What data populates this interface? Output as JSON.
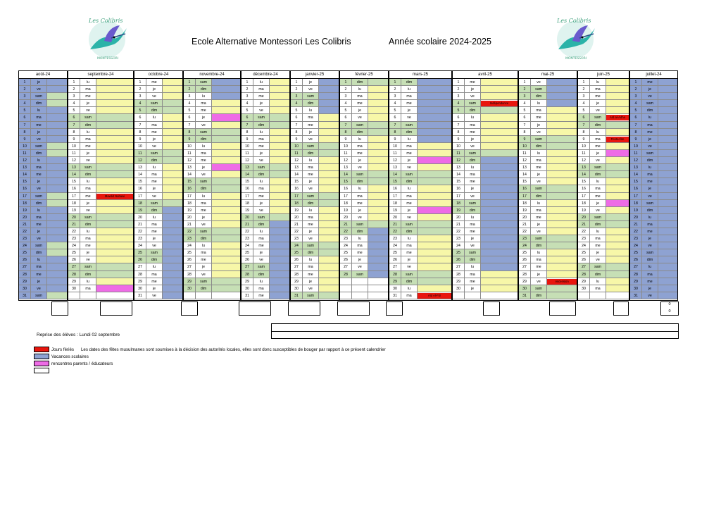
{
  "header": {
    "title_left": "Ecole Alternative Montessori Les Colibris",
    "title_right": "Année scolaire 2024-2025",
    "logo_text_top": "Les Colibris",
    "logo_text_bottom": "MONTESSORI",
    "logo_icon": "hummingbird-icon"
  },
  "colors": {
    "school": "#f7f7a8",
    "weekend": "#c6dfb5",
    "vacances": "#8ea2d2",
    "ferie": "#e8160e",
    "rencontre": "#ee6ce6",
    "summer": "#ffffff"
  },
  "months": [
    {
      "label": "août-24",
      "first_dow": 3,
      "days": 31,
      "summer": true
    },
    {
      "label": "septembre-24",
      "first_dow": 0,
      "days": 30,
      "vac": [],
      "ferie": [],
      "rencontre": [],
      "special": {
        "17": "Mawlid Nabawi"
      }
    },
    {
      "label": "octobre-24",
      "first_dow": 2,
      "days": 31
    },
    {
      "label": "novembre-24",
      "first_dow": 5,
      "days": 30
    },
    {
      "label": "décembre-24",
      "first_dow": 0,
      "days": 31
    },
    {
      "label": "janvier-25",
      "first_dow": 3,
      "days": 31
    },
    {
      "label": "février-25",
      "first_dow": 6,
      "days": 28
    },
    {
      "label": "mars-25",
      "first_dow": 6,
      "days": 31
    },
    {
      "label": "avril-25",
      "first_dow": 2,
      "days": 30
    },
    {
      "label": "mai-25",
      "first_dow": 4,
      "days": 31
    },
    {
      "label": "juin-25",
      "first_dow": 0,
      "days": 30
    },
    {
      "label": "juillet-24",
      "first_dow": 2,
      "days": 31
    }
  ],
  "dow_labels": [
    "lu",
    "ma",
    "me",
    "je",
    "ve",
    "sam",
    "dim"
  ],
  "dow_labels_aout": [
    "lu",
    "ma",
    "me",
    "je",
    "ve",
    "sam",
    "dim"
  ],
  "special_notes": {
    "septembre-24": {
      "17": "Mawlid Nabawi"
    },
    "mars-25": {
      "31": "Aïd el-Fitr"
    },
    "avril-25": {
      "4": "Indépendance"
    },
    "mai-25": {
      "29": "Ascension"
    },
    "juin-25": {
      "6": "Aïd al-Adha",
      "9": "Pentecôte"
    }
  },
  "totals": {
    "zero_1": "0",
    "zero_2": "0"
  },
  "reprise": "Reprise des élèves : Lundi 02 septembre",
  "legend": [
    {
      "color": "#e8160e",
      "label": "Jours fériés",
      "note": "Les dates des fêtes musulmanes sont soumises à la décision des autorités locales, elles sont donc susceptibles de bouger par rapport à ce présent calendrier"
    },
    {
      "color": "#8ea2d2",
      "label": "Vacances scolaires",
      "note": ""
    },
    {
      "color": "#ee6ce6",
      "label": "rencontres parents / éducateurs",
      "note": ""
    },
    {
      "color": "#ffffff",
      "label": "",
      "note": ""
    }
  ]
}
